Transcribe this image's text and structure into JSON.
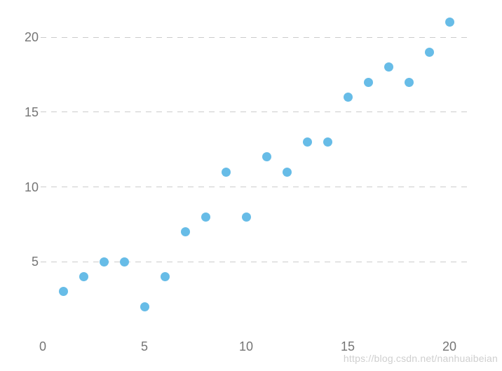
{
  "watermark": "https://blog.csdn.net/nanhuaibeian",
  "colors": {
    "dot": "#67BCE7",
    "grid": "#cccccc",
    "tick_label": "#757575",
    "watermark": "#cfcfcf",
    "background": "#ffffff"
  },
  "chart_data": {
    "type": "scatter",
    "title": "",
    "xlabel": "",
    "ylabel": "",
    "x": [
      1,
      2,
      3,
      4,
      5,
      6,
      7,
      8,
      9,
      10,
      11,
      12,
      13,
      14,
      15,
      16,
      17,
      18,
      19,
      20
    ],
    "y": [
      3,
      4,
      5,
      5,
      2,
      4,
      7,
      8,
      11,
      8,
      12,
      11,
      13,
      13,
      16,
      17,
      18,
      17,
      19,
      21
    ],
    "xticks": [
      0,
      5,
      10,
      15,
      20
    ],
    "yticks": [
      5,
      10,
      15,
      20
    ],
    "xlim": [
      0,
      20
    ],
    "ylim": [
      0,
      22
    ],
    "grid": "horizontal dashed lines at y ticks only",
    "legend": "none"
  }
}
